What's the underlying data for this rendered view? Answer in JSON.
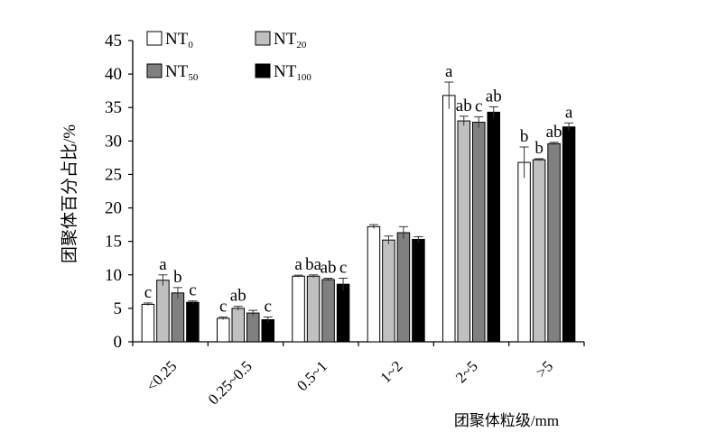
{
  "chart_data": {
    "type": "bar",
    "ylabel": "团聚体百分占比/%",
    "xlabel": "团聚体粒级/mm",
    "ylim": [
      0,
      45
    ],
    "yticks": [
      0,
      5,
      10,
      15,
      20,
      25,
      30,
      35,
      40,
      45
    ],
    "categories": [
      "<0.25",
      "0.25~0.5",
      "0.5~1",
      "1~2",
      "2~5",
      ">5"
    ],
    "legend": {
      "placement": "top-left",
      "columns": 2
    },
    "series": [
      {
        "name": "NT",
        "sub": "0",
        "color": "#ffffff",
        "values": [
          5.6,
          3.5,
          9.8,
          17.2,
          36.8,
          26.8
        ],
        "errors": [
          0.2,
          0.2,
          0.15,
          0.3,
          2.0,
          2.3
        ],
        "letters": [
          "c",
          "c",
          "a",
          "",
          "a",
          "b"
        ]
      },
      {
        "name": "NT",
        "sub": "20",
        "color": "#c0c0c0",
        "values": [
          9.2,
          5.0,
          9.8,
          15.2,
          33.0,
          27.2
        ],
        "errors": [
          0.8,
          0.3,
          0.2,
          0.6,
          0.7,
          0.15
        ],
        "letters": [
          "a",
          "ab",
          "ba",
          "",
          "ab",
          "b"
        ]
      },
      {
        "name": "NT",
        "sub": "50",
        "color": "#808080",
        "values": [
          7.3,
          4.3,
          9.3,
          16.3,
          32.8,
          29.6
        ],
        "errors": [
          0.8,
          0.4,
          0.2,
          0.9,
          0.8,
          0.2
        ],
        "letters": [
          "b",
          "",
          "ab",
          "",
          "c",
          "ab"
        ]
      },
      {
        "name": "NT",
        "sub": "100",
        "color": "#000000",
        "values": [
          5.9,
          3.3,
          8.6,
          15.3,
          34.3,
          32.1
        ],
        "errors": [
          0.2,
          0.4,
          0.9,
          0.4,
          0.8,
          0.6
        ],
        "letters": [
          "c",
          "c",
          "c",
          "",
          "ab",
          "a"
        ]
      }
    ]
  }
}
